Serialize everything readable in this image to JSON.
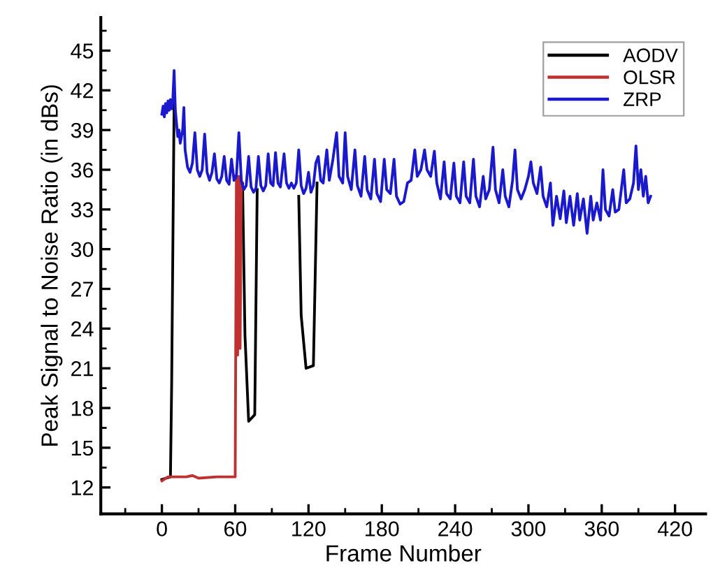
{
  "chart_data": {
    "type": "line",
    "xlabel": "Frame Number",
    "ylabel": "Peak Signal to Noise Ratio (in dBs)",
    "xlim": [
      -50,
      445
    ],
    "ylim": [
      10,
      47.5
    ],
    "xticks": [
      0,
      60,
      120,
      180,
      240,
      300,
      360,
      420
    ],
    "yticks": [
      12,
      15,
      18,
      21,
      24,
      27,
      30,
      33,
      36,
      39,
      42,
      45
    ],
    "grid": false,
    "legend": "top right",
    "marker": "none",
    "line_style": "solid",
    "series": [
      {
        "name": "AODV",
        "color": "#000000",
        "x": [
          0,
          7,
          8,
          10,
          10.5,
          60,
          66,
          68,
          71,
          76,
          78,
          79,
          112,
          114,
          118,
          124,
          127
        ],
        "values": [
          12.6,
          12.8,
          19.8,
          41,
          null,
          35.5,
          35,
          23.5,
          17,
          17.5,
          34.5,
          null,
          34,
          25,
          21,
          21.2,
          35
        ]
      },
      {
        "name": "OLSR",
        "color": "#c03030",
        "x": [
          0,
          5,
          20,
          25,
          30,
          45,
          60,
          61,
          62,
          63,
          64,
          65
        ],
        "values": [
          12.5,
          12.8,
          12.8,
          12.9,
          12.7,
          12.8,
          12.8,
          35.5,
          22,
          35.5,
          22.5,
          35
        ]
      },
      {
        "name": "ZRP",
        "color": "#1a1acc",
        "x": [
          0,
          1,
          2,
          3,
          4,
          5,
          6,
          7,
          8,
          9,
          10,
          11,
          12,
          13,
          14,
          15,
          17,
          18,
          19,
          21,
          23,
          25,
          27,
          29,
          31,
          33,
          35,
          37,
          39,
          41,
          43,
          45,
          47,
          49,
          51,
          53,
          55,
          57,
          59,
          61,
          63,
          65,
          67,
          69,
          71,
          73,
          75,
          77,
          79,
          81,
          83,
          85,
          87,
          89,
          91,
          93,
          95,
          97,
          100,
          102,
          104,
          106,
          108,
          110,
          112,
          114,
          116,
          118,
          120,
          122,
          124,
          126,
          128,
          130,
          132,
          135,
          137,
          140,
          143,
          145,
          148,
          150,
          152,
          155,
          158,
          160,
          163,
          166,
          168,
          171,
          174,
          176,
          179,
          182,
          184,
          187,
          190,
          192,
          195,
          198,
          201,
          204,
          207,
          209,
          212,
          215,
          217,
          220,
          223,
          225,
          228,
          231,
          233,
          236,
          239,
          241,
          244,
          247,
          249,
          252,
          255,
          257,
          260,
          263,
          265,
          268,
          271,
          273,
          276,
          279,
          281,
          284,
          287,
          289,
          291,
          294,
          297,
          300,
          302,
          304,
          307,
          310,
          312,
          315,
          318,
          320,
          323,
          326,
          329,
          331,
          334,
          337,
          340,
          342,
          345,
          348,
          351,
          353,
          356,
          359,
          361,
          363,
          366,
          369,
          371,
          374,
          378,
          380,
          383,
          386,
          388,
          390,
          392,
          394,
          396,
          398,
          400
        ],
        "values": [
          40.2,
          40.8,
          40.0,
          41.0,
          40.3,
          41.2,
          40.5,
          41.3,
          40.6,
          41.4,
          43.5,
          40.5,
          39.5,
          38.5,
          39.0,
          38.0,
          39.0,
          40.7,
          37.5,
          36.2,
          35.8,
          36.5,
          38.8,
          36.0,
          35.5,
          36.0,
          38.7,
          35.8,
          35.2,
          35.8,
          37.2,
          35.3,
          35.0,
          35.5,
          37.0,
          35.2,
          34.9,
          36.8,
          35.2,
          35.5,
          38.8,
          35.2,
          34.5,
          34.8,
          37.0,
          34.7,
          34.3,
          34.6,
          37.0,
          34.8,
          34.4,
          34.8,
          37.2,
          35.0,
          34.8,
          37.3,
          35.0,
          34.7,
          37.2,
          35.0,
          34.6,
          35.0,
          34.6,
          35.0,
          37.5,
          34.8,
          34.2,
          34.6,
          35.8,
          34.3,
          34.8,
          36.5,
          37.0,
          35.2,
          35.0,
          37.5,
          35.2,
          36.8,
          38.8,
          35.5,
          35.0,
          38.8,
          35.5,
          34.5,
          37.5,
          34.8,
          34.0,
          37.0,
          34.5,
          33.8,
          36.8,
          34.2,
          33.6,
          36.8,
          34.5,
          34.2,
          36.8,
          34.0,
          33.4,
          33.6,
          35.0,
          35.2,
          37.5,
          35.5,
          36.0,
          37.5,
          36.0,
          35.5,
          37.4,
          35.0,
          33.8,
          36.6,
          34.2,
          33.8,
          36.5,
          34.0,
          33.5,
          36.6,
          34.0,
          33.5,
          36.8,
          34.0,
          33.2,
          35.5,
          33.8,
          34.5,
          37.7,
          34.5,
          33.5,
          36.0,
          34.0,
          33.2,
          35.2,
          37.5,
          34.5,
          33.8,
          34.5,
          35.5,
          36.6,
          35.0,
          34.2,
          36.2,
          34.0,
          33.2,
          35.0,
          31.8,
          34.0,
          32.3,
          34.4,
          32.0,
          34.0,
          31.8,
          34.2,
          32.2,
          33.8,
          31.2,
          34.0,
          32.2,
          33.5,
          32.2,
          36.0,
          33.0,
          32.5,
          34.5,
          32.8,
          33.0,
          36.0,
          33.5,
          33.8,
          35.0,
          37.8,
          34.5,
          36.0,
          34.0,
          35.5,
          33.5,
          34.0
        ]
      }
    ]
  }
}
